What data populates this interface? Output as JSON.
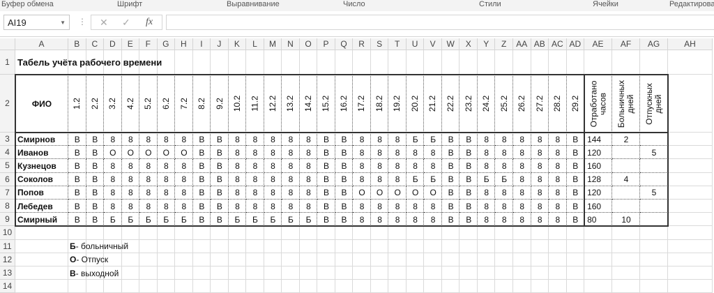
{
  "ribbon": {
    "groups": [
      "Буфер обмена",
      "Шрифт",
      "Выравнивание",
      "Число",
      "Стили",
      "Ячейки",
      "Редактирова"
    ]
  },
  "formula_bar": {
    "name_box": "AI19",
    "cancel_icon": "✕",
    "enter_icon": "✓",
    "fx_label": "fx",
    "formula": ""
  },
  "columns": [
    "A",
    "B",
    "C",
    "D",
    "E",
    "F",
    "G",
    "H",
    "I",
    "J",
    "K",
    "L",
    "M",
    "N",
    "O",
    "P",
    "Q",
    "R",
    "S",
    "T",
    "U",
    "V",
    "W",
    "X",
    "Y",
    "Z",
    "AA",
    "AB",
    "AC",
    "AD",
    "AE",
    "AF",
    "AG",
    "AH"
  ],
  "row_numbers": [
    "1",
    "2",
    "3",
    "4",
    "5",
    "6",
    "7",
    "8",
    "9",
    "10",
    "11",
    "12",
    "13",
    "14"
  ],
  "sheet": {
    "title": "Табель учёта рабочего времени",
    "header_name": "ФИО",
    "day_headers": [
      "1.2",
      "2.2",
      "3.2",
      "4.2",
      "5.2",
      "6.2",
      "7.2",
      "8.2",
      "9.2",
      "10.2",
      "11.2",
      "12.2",
      "13.2",
      "14.2",
      "15.2",
      "16.2",
      "17.2",
      "18.2",
      "19.2",
      "20.2",
      "21.2",
      "22.2",
      "23.2",
      "24.2",
      "25.2",
      "26.2",
      "27.2",
      "28.2",
      "29.2"
    ],
    "total_headers": [
      "Отработано часов",
      "Больничных дней",
      "Отпускных дней"
    ],
    "rows": [
      {
        "name": "Смирнов",
        "days": [
          "В",
          "В",
          "8",
          "8",
          "8",
          "8",
          "8",
          "В",
          "В",
          "8",
          "8",
          "8",
          "8",
          "8",
          "В",
          "В",
          "8",
          "8",
          "8",
          "Б",
          "Б",
          "В",
          "В",
          "8",
          "8",
          "8",
          "8",
          "8",
          "В"
        ],
        "hours": "144",
        "sick": "2",
        "vacation": ""
      },
      {
        "name": "Иванов",
        "days": [
          "В",
          "В",
          "О",
          "О",
          "О",
          "О",
          "О",
          "В",
          "В",
          "8",
          "8",
          "8",
          "8",
          "8",
          "В",
          "В",
          "8",
          "8",
          "8",
          "8",
          "8",
          "В",
          "В",
          "8",
          "8",
          "8",
          "8",
          "8",
          "В"
        ],
        "hours": "120",
        "sick": "",
        "vacation": "5"
      },
      {
        "name": "Кузнецов",
        "days": [
          "В",
          "В",
          "8",
          "8",
          "8",
          "8",
          "8",
          "В",
          "В",
          "8",
          "8",
          "8",
          "8",
          "8",
          "В",
          "В",
          "8",
          "8",
          "8",
          "8",
          "8",
          "В",
          "В",
          "8",
          "8",
          "8",
          "8",
          "8",
          "В"
        ],
        "hours": "160",
        "sick": "",
        "vacation": ""
      },
      {
        "name": "Соколов",
        "days": [
          "В",
          "В",
          "8",
          "8",
          "8",
          "8",
          "8",
          "В",
          "В",
          "8",
          "8",
          "8",
          "8",
          "8",
          "В",
          "В",
          "8",
          "8",
          "8",
          "Б",
          "Б",
          "В",
          "В",
          "Б",
          "Б",
          "8",
          "8",
          "8",
          "В"
        ],
        "hours": "128",
        "sick": "4",
        "vacation": ""
      },
      {
        "name": "Попов",
        "days": [
          "В",
          "В",
          "8",
          "8",
          "8",
          "8",
          "8",
          "В",
          "В",
          "8",
          "8",
          "8",
          "8",
          "8",
          "В",
          "В",
          "О",
          "О",
          "О",
          "О",
          "О",
          "В",
          "В",
          "8",
          "8",
          "8",
          "8",
          "8",
          "В"
        ],
        "hours": "120",
        "sick": "",
        "vacation": "5"
      },
      {
        "name": "Лебедев",
        "days": [
          "В",
          "В",
          "8",
          "8",
          "8",
          "8",
          "8",
          "В",
          "В",
          "8",
          "8",
          "8",
          "8",
          "8",
          "В",
          "В",
          "8",
          "8",
          "8",
          "8",
          "8",
          "В",
          "В",
          "8",
          "8",
          "8",
          "8",
          "8",
          "В"
        ],
        "hours": "160",
        "sick": "",
        "vacation": ""
      },
      {
        "name": "Смирный",
        "days": [
          "В",
          "В",
          "Б",
          "Б",
          "Б",
          "Б",
          "Б",
          "В",
          "В",
          "Б",
          "Б",
          "Б",
          "Б",
          "Б",
          "В",
          "В",
          "8",
          "8",
          "8",
          "8",
          "8",
          "В",
          "В",
          "8",
          "8",
          "8",
          "8",
          "8",
          "В"
        ],
        "hours": "80",
        "sick": "10",
        "vacation": ""
      }
    ],
    "legend": [
      {
        "code": "Б",
        "text": " - больничный"
      },
      {
        "code": "О",
        "text": " - Отпуск"
      },
      {
        "code": "В",
        "text": " - выходной"
      }
    ]
  }
}
